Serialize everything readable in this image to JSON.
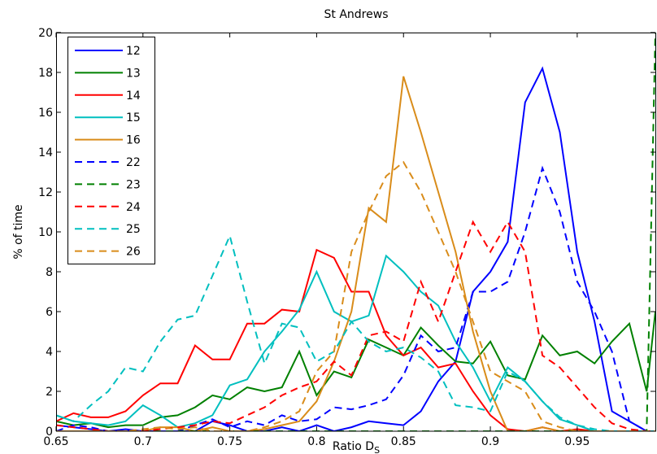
{
  "chart_data": {
    "type": "line",
    "title": "St Andrews",
    "x_label": "Ratio D",
    "x_label_subscript": "S",
    "y_label": "% of time",
    "x": [
      0.65,
      0.66,
      0.67,
      0.68,
      0.69,
      0.7,
      0.71,
      0.72,
      0.73,
      0.74,
      0.75,
      0.76,
      0.77,
      0.78,
      0.79,
      0.8,
      0.81,
      0.82,
      0.83,
      0.84,
      0.85,
      0.86,
      0.87,
      0.88,
      0.89,
      0.9,
      0.91,
      0.92,
      0.93,
      0.94,
      0.95,
      0.96,
      0.97,
      0.98,
      0.99,
      0.995
    ],
    "series": [
      {
        "name": "12",
        "color": "#0000ff",
        "dashed": false,
        "values": [
          0.3,
          0.2,
          0.1,
          0,
          0.1,
          0,
          0,
          0,
          0,
          0.5,
          0.3,
          0,
          0,
          0.2,
          0,
          0.3,
          0,
          0.2,
          0.5,
          0.4,
          0.3,
          1.0,
          2.5,
          3.5,
          7,
          8,
          9.5,
          16.5,
          18.2,
          15,
          9,
          5.5,
          1,
          0.5,
          0,
          0
        ]
      },
      {
        "name": "13",
        "color": "#008000",
        "dashed": false,
        "values": [
          0.5,
          0.3,
          0.4,
          0.2,
          0.3,
          0.3,
          0.7,
          0.8,
          1.2,
          1.8,
          1.6,
          2.2,
          2,
          2.2,
          4,
          1.8,
          3,
          2.7,
          4.6,
          4.2,
          3.8,
          5.2,
          4.3,
          3.5,
          3.4,
          4.5,
          2.8,
          2.6,
          4.8,
          3.8,
          4,
          3.4,
          4.5,
          5.4,
          2,
          6
        ]
      },
      {
        "name": "14",
        "color": "#ff0000",
        "dashed": false,
        "values": [
          0.5,
          0.9,
          0.7,
          0.7,
          1.0,
          1.8,
          2.4,
          2.4,
          4.3,
          3.6,
          3.6,
          5.4,
          5.4,
          6.1,
          6,
          9.1,
          8.7,
          7,
          7,
          4.8,
          3.8,
          4.2,
          3.2,
          3.4,
          2,
          0.8,
          0.1,
          0,
          0.2,
          0,
          0.1,
          0,
          0,
          0,
          0,
          0
        ]
      },
      {
        "name": "15",
        "color": "#00bfbf",
        "dashed": false,
        "values": [
          0.8,
          0.5,
          0.4,
          0.3,
          0.5,
          1.3,
          0.8,
          0.2,
          0.4,
          0.8,
          2.3,
          2.6,
          4,
          5,
          6.1,
          8,
          6,
          5.5,
          5.8,
          8.8,
          8,
          7,
          6.3,
          4.5,
          3.2,
          1.5,
          3.2,
          2.5,
          1.5,
          0.6,
          0.3,
          0,
          0,
          0,
          0,
          0
        ]
      },
      {
        "name": "16",
        "color": "#d98c1a",
        "dashed": false,
        "values": [
          0,
          0,
          0,
          0,
          0,
          0,
          0.2,
          0.2,
          0,
          0.2,
          0,
          0,
          0.1,
          0.3,
          0.5,
          1.5,
          3.5,
          6,
          11.2,
          10.5,
          17.8,
          15,
          12,
          9,
          5,
          2,
          0,
          0,
          0.2,
          0,
          0,
          0,
          0,
          0,
          0,
          0
        ]
      },
      {
        "name": "22",
        "color": "#0000ff",
        "dashed": true,
        "values": [
          0,
          0.3,
          0.2,
          0,
          0,
          0,
          0,
          0,
          0.3,
          0.6,
          0.2,
          0.5,
          0.3,
          0.8,
          0.5,
          0.6,
          1.2,
          1.1,
          1.3,
          1.6,
          2.8,
          4.8,
          4,
          4.2,
          7,
          7,
          7.5,
          10,
          13.2,
          11,
          7.5,
          6,
          4,
          0.5,
          0,
          0
        ]
      },
      {
        "name": "23",
        "color": "#008000",
        "dashed": true,
        "values": [
          0,
          0,
          0,
          0,
          0,
          0,
          0,
          0,
          0,
          0,
          0,
          0,
          0,
          0,
          0,
          0,
          0,
          0,
          0,
          0,
          0,
          0,
          0,
          0,
          0,
          0,
          0,
          0,
          0,
          0,
          0,
          0,
          0,
          0,
          0,
          20
        ]
      },
      {
        "name": "24",
        "color": "#ff0000",
        "dashed": true,
        "values": [
          0.3,
          0.2,
          0.1,
          0,
          0,
          0,
          0.1,
          0.2,
          0.3,
          0.5,
          0.4,
          0.8,
          1.2,
          1.8,
          2.2,
          2.5,
          3.5,
          2.8,
          4.8,
          5,
          4.5,
          7.5,
          5.5,
          8,
          10.5,
          9,
          10.5,
          9,
          3.8,
          3.2,
          2.2,
          1.2,
          0.4,
          0.1,
          0,
          0
        ]
      },
      {
        "name": "25",
        "color": "#00bfbf",
        "dashed": true,
        "values": [
          0.8,
          0.5,
          1.3,
          2,
          3.2,
          3,
          4.5,
          5.6,
          5.8,
          7.8,
          9.8,
          6.5,
          3.4,
          5.4,
          5.2,
          3.5,
          4,
          5.5,
          4.5,
          4,
          4.2,
          3.7,
          3,
          1.3,
          1.2,
          1,
          3,
          2.5,
          1.5,
          0.7,
          0.3,
          0.1,
          0,
          0,
          0,
          0
        ]
      },
      {
        "name": "26",
        "color": "#d98c1a",
        "dashed": true,
        "values": [
          0,
          0,
          0,
          0,
          0,
          0.1,
          0.2,
          0.1,
          0.2,
          0,
          0,
          0,
          0.2,
          0.5,
          1,
          3,
          4,
          9,
          11,
          12.8,
          13.5,
          12,
          10,
          8,
          5.5,
          3,
          2.5,
          2,
          0.5,
          0.2,
          0,
          0,
          0,
          0,
          0,
          0
        ]
      }
    ],
    "xlim": [
      0.65,
      0.995
    ],
    "ylim": [
      0,
      20
    ],
    "xticks": [
      0.65,
      0.7,
      0.75,
      0.8,
      0.85,
      0.9,
      0.95
    ],
    "yticks": [
      0,
      2,
      4,
      6,
      8,
      10,
      12,
      14,
      16,
      18,
      20
    ],
    "grid": false,
    "legend_position": "upper-left"
  }
}
